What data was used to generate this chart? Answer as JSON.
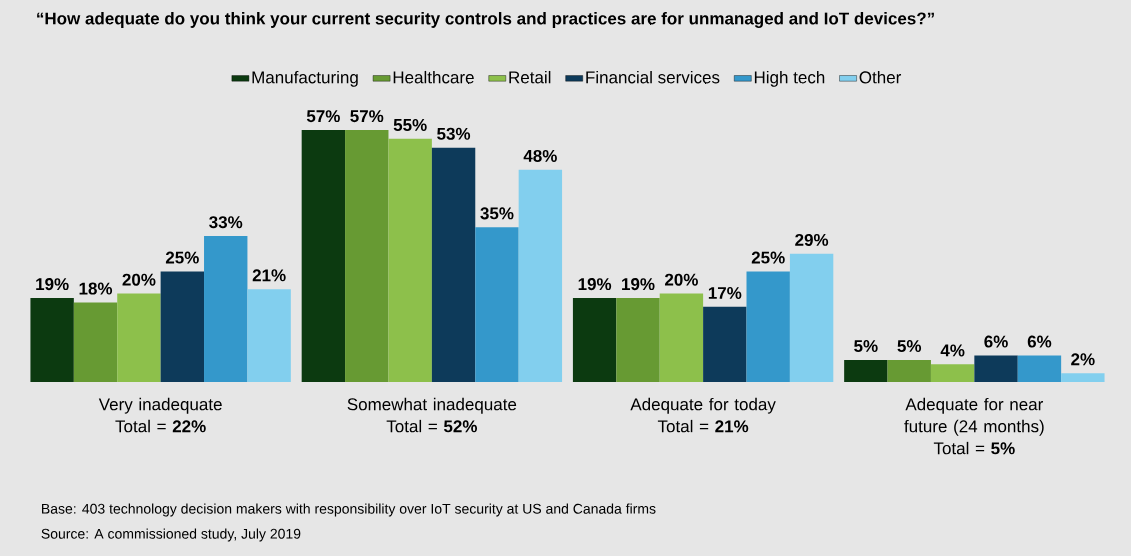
{
  "chart_data": {
    "type": "bar",
    "title": "“How adequate do you think your current security controls and practices are for unmanaged and IoT devices?”",
    "categories": [
      "Very inadequate",
      "Somewhat inadequate",
      "Adequate for today",
      "Adequate for near future (24 months)"
    ],
    "series": [
      {
        "name": "Manufacturing",
        "color": "#0c3a10",
        "values": [
          19,
          57,
          19,
          5
        ],
        "value_labels": [
          "19%",
          "57%",
          "19%",
          "5%"
        ]
      },
      {
        "name": "Healthcare",
        "color": "#679a33",
        "values": [
          18,
          57,
          19,
          5
        ],
        "value_labels": [
          "18%",
          "57%",
          "19%",
          "5%"
        ]
      },
      {
        "name": "Retail",
        "color": "#8dc04b",
        "values": [
          20,
          55,
          20,
          4
        ],
        "value_labels": [
          "20%",
          "55%",
          "20%",
          "4%"
        ]
      },
      {
        "name": "Financial services",
        "color": "#0d3a5a",
        "values": [
          25,
          53,
          17,
          6
        ],
        "value_labels": [
          "25%",
          "53%",
          "17%",
          "6%"
        ]
      },
      {
        "name": "High tech",
        "color": "#3498cb",
        "values": [
          33,
          35,
          25,
          6
        ],
        "value_labels": [
          "33%",
          "35%",
          "25%",
          "6%"
        ]
      },
      {
        "name": "Other",
        "color": "#82cfee",
        "values": [
          21,
          48,
          29,
          2
        ],
        "value_labels": [
          "21%",
          "48%",
          "29%",
          "2%"
        ]
      }
    ],
    "legend": "top",
    "annotations": [
      "Total = **22%**",
      "Total = **52%**",
      "Total = **21%**",
      "Total = **5%**",
      "Base: 403 technology decision makers with responsibility over IoT security at US and Canada firms",
      "Source: A commissioned study, July 2019"
    ]
  }
}
